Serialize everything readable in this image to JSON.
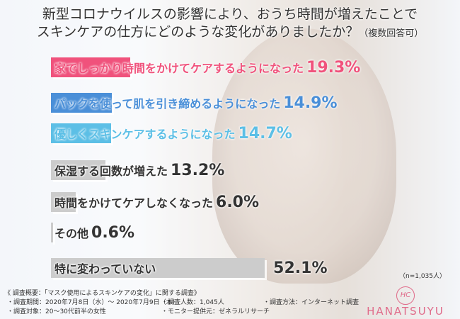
{
  "title": {
    "line1": "新型コロナウイルスの影響により、おうち時間が増えたことで",
    "line2": "スキンケアの仕方にどのような変化がありましたか？",
    "note": "（複数回答可）"
  },
  "chart_data": {
    "type": "bar",
    "orientation": "horizontal",
    "categories": [
      "家でしっかり時間をかけてケアするようになった",
      "パックを使って肌を引き締めるようになった",
      "優しくスキンケアするようになった",
      "保湿する回数が増えた",
      "時間をかけてケアしなくなった",
      "その他",
      "特に変わっていない"
    ],
    "values": [
      19.3,
      14.9,
      14.7,
      13.2,
      6.0,
      0.6,
      52.1
    ],
    "value_labels": [
      "19.3%",
      "14.9%",
      "14.7%",
      "13.2%",
      "6.0%",
      "0.6%",
      "52.1%"
    ],
    "bar_colors": [
      "#f0527c",
      "#4a8fd8",
      "#5cbfe6",
      "#cccccc",
      "#cccccc",
      "#cccccc",
      "#cccccc"
    ],
    "text_colors": [
      "#f0527c",
      "#4a8fd8",
      "#5cbfe6",
      "#333333",
      "#333333",
      "#333333",
      "#333333"
    ],
    "unit": "%"
  },
  "sample_note": "（n=1,035人）",
  "survey": {
    "heading": "《 調査概要：「マスク使用によるスキンケアの変化」に関する調査》",
    "period": "・調査期間：2020年7月8日（水）～ 2020年7月9日（木）",
    "count": "・調査人数：1,045人",
    "method": "・調査方法：インターネット調査",
    "target": "・調査対象：20～30代前半の女性",
    "provider": "・モニター提供元：ゼネラルリサーチ"
  },
  "logo": {
    "name": "HANATSUYU",
    "mark": "HC"
  }
}
